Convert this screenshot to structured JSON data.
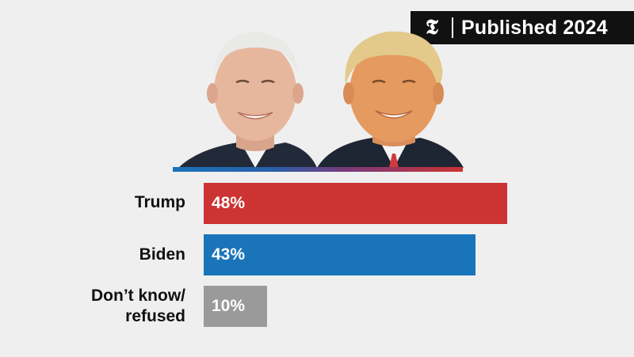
{
  "header": {
    "logo_glyph": "𝕿",
    "badge_text": "Published 2024"
  },
  "portraits": {
    "left": "biden-portrait",
    "right": "trump-portrait"
  },
  "colors": {
    "trump": "#cc3333",
    "biden": "#1a74b9",
    "undecided": "#9a9a9a",
    "background": "#efefef"
  },
  "chart_data": {
    "type": "bar",
    "orientation": "horizontal",
    "categories": [
      "Trump",
      "Biden",
      "Don’t know/ refused"
    ],
    "values": [
      48,
      43,
      10
    ],
    "value_labels": [
      "48%",
      "43%",
      "10%"
    ],
    "unit": "%",
    "xlim": [
      0,
      48
    ]
  }
}
